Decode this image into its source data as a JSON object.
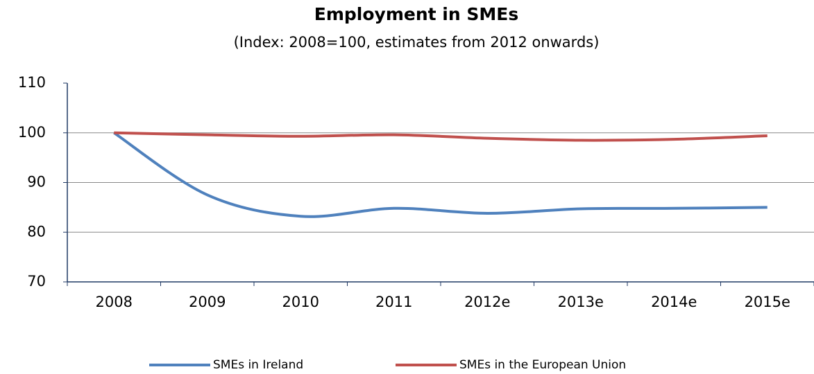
{
  "chart_data": {
    "type": "line",
    "title": "Employment in SMEs",
    "subtitle": "(Index: 2008=100, estimates from 2012 onwards)",
    "categories": [
      "2008",
      "2009",
      "2010",
      "2011",
      "2012e",
      "2013e",
      "2014e",
      "2015e"
    ],
    "series": [
      {
        "name": "SMEs in Ireland",
        "color": "#4f81bd",
        "values": [
          100,
          87.5,
          83.2,
          84.8,
          83.8,
          84.7,
          84.8,
          85
        ]
      },
      {
        "name": "SMEs in the European Union",
        "color": "#c0504d",
        "values": [
          100,
          99.6,
          99.3,
          99.6,
          98.9,
          98.5,
          98.7,
          99.4
        ]
      }
    ],
    "ylim": [
      70,
      110
    ],
    "yticks": [
      70,
      80,
      90,
      100,
      110
    ],
    "grid": true,
    "legend": "bottom"
  }
}
